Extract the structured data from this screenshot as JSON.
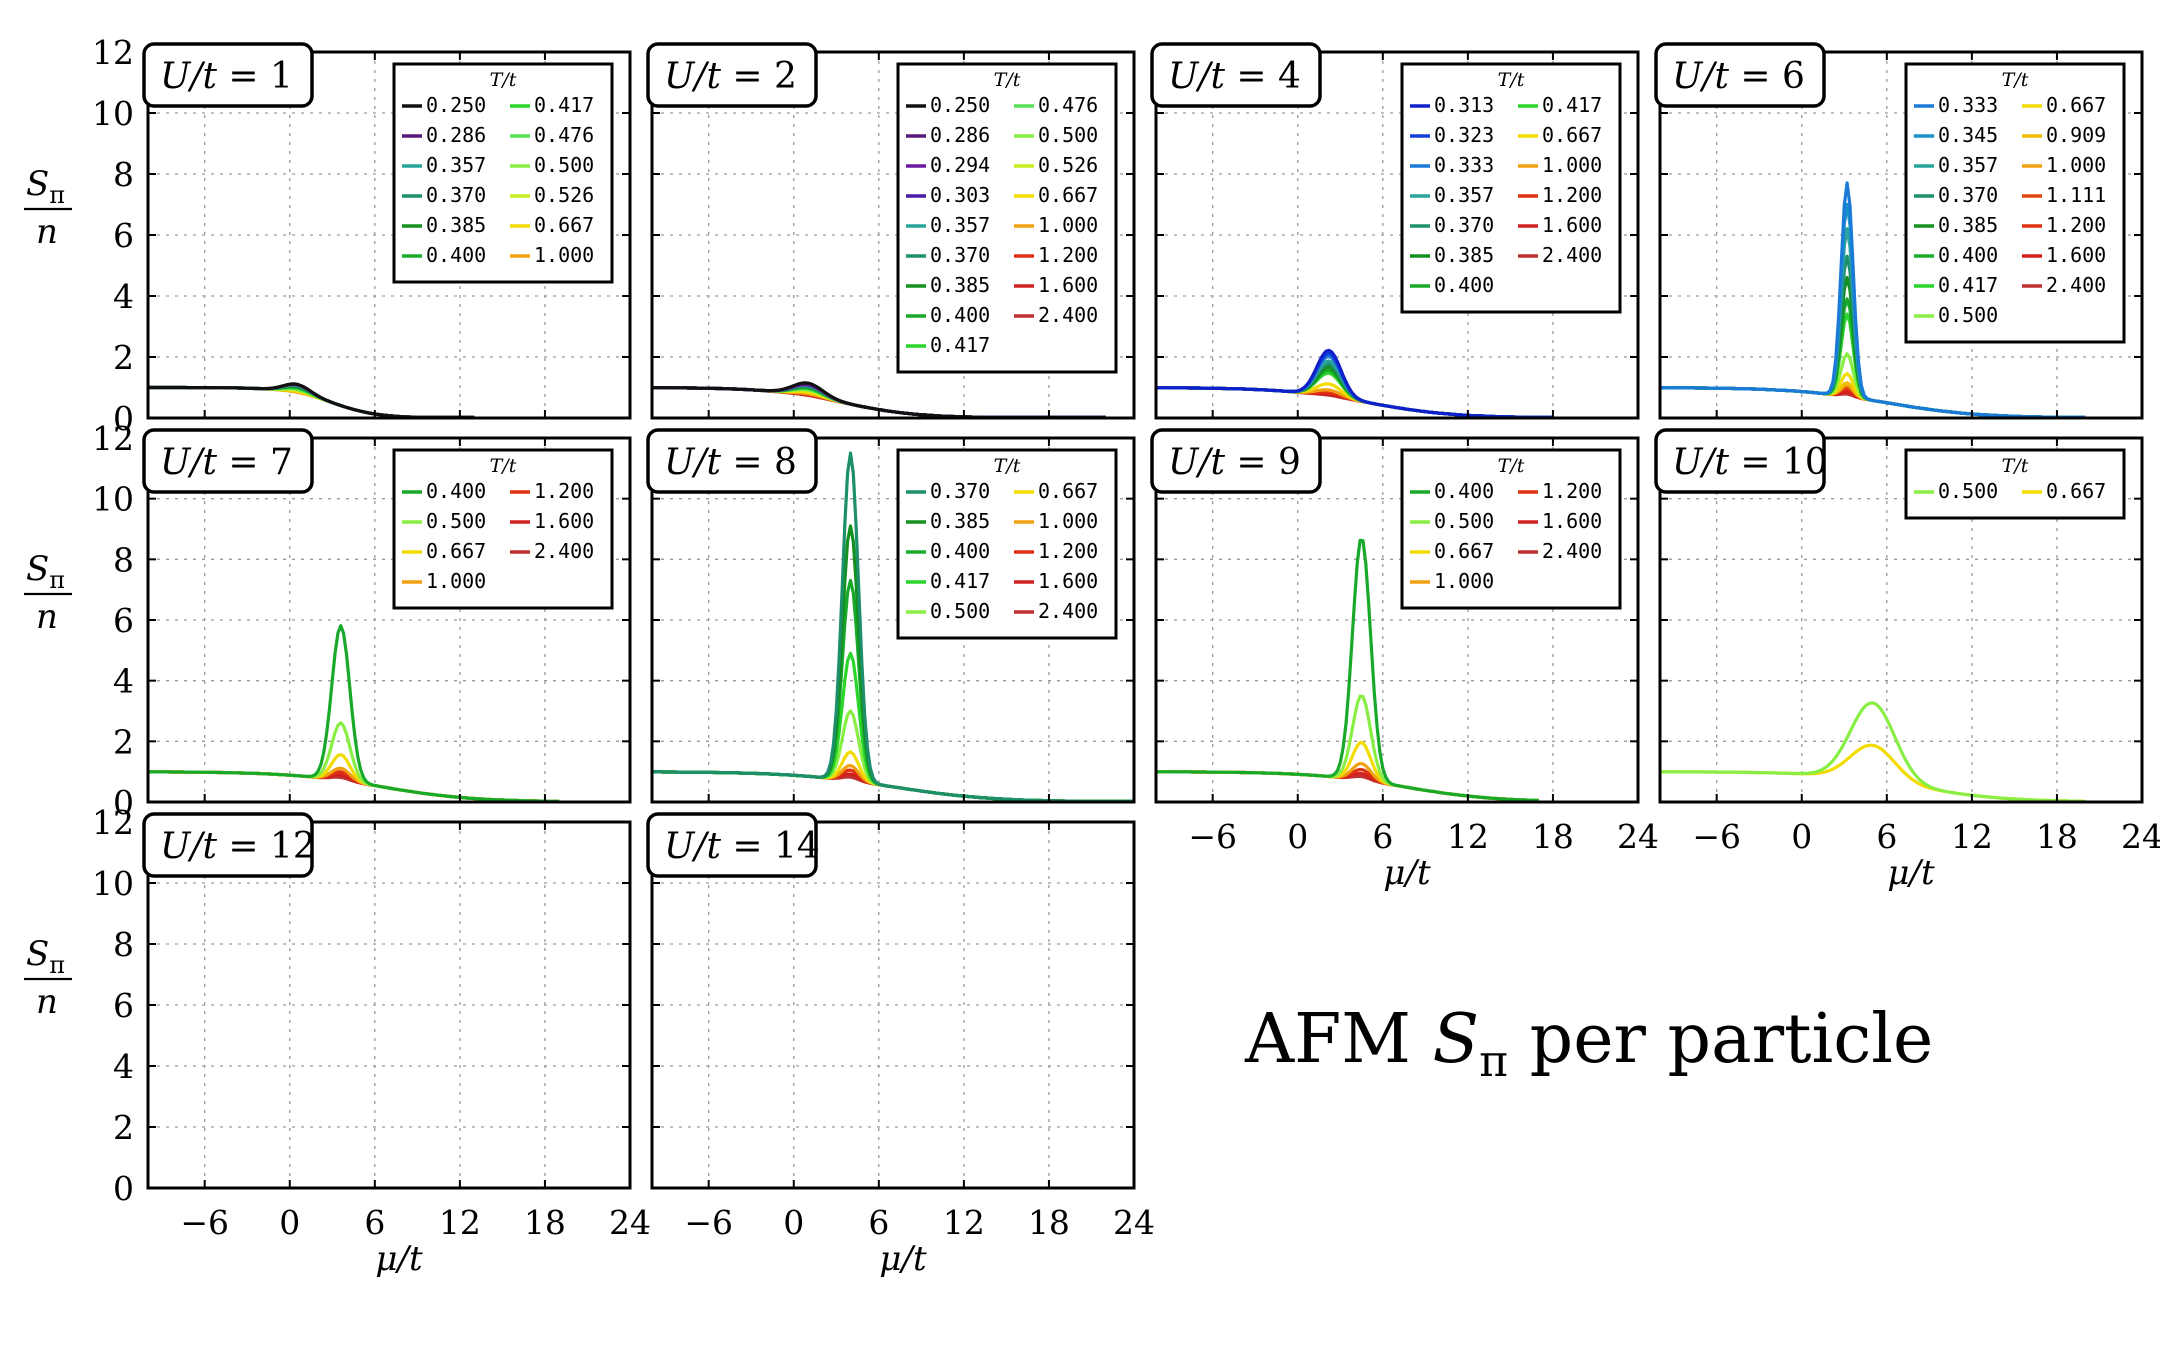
{
  "figure": {
    "title_prefix": "AFM ",
    "title_symbol": "S",
    "title_subscript": "π",
    "title_suffix": " per particle",
    "ylabel_numerator": "S",
    "ylabel_numerator_sub": "π",
    "ylabel_denominator": "n",
    "xlabel": "μ/t",
    "legend_title": "T/t"
  },
  "chart_data": {
    "type": "line",
    "x_axis": {
      "label": "μ/t",
      "range": [
        -10,
        24
      ],
      "ticks": [
        -6,
        0,
        6,
        12,
        18,
        24
      ],
      "tick_labels": [
        "−6",
        "0",
        "6",
        "12",
        "18",
        "24"
      ]
    },
    "y_axis": {
      "label": "S_π / n",
      "range": [
        0,
        12
      ],
      "ticks": [
        0,
        2,
        4,
        6,
        8,
        10,
        12
      ],
      "tick_labels": [
        "0",
        "2",
        "4",
        "6",
        "8",
        "10",
        "12"
      ]
    },
    "grid": true,
    "legend_placement": "top-right",
    "panels": [
      {
        "label": "U/t = 1",
        "temperatures": [
          "0.250",
          "0.286",
          "0.357",
          "0.370",
          "0.385",
          "0.400",
          "0.417",
          "0.476",
          "0.500",
          "0.526",
          "0.667",
          "1.000"
        ],
        "legend_rows_per_col": 6,
        "peak": {
          "mu": 0.5,
          "width": 1.3,
          "heights": [
            0.28,
            0.26,
            0.24,
            0.22,
            0.2,
            0.18,
            0.16,
            0.13,
            0.11,
            0.09,
            0.05,
            0.02
          ]
        },
        "decay": {
          "mu": 3.0,
          "width": 1.6
        },
        "base": 1.0,
        "x_end": 13,
        "colors": [
          "#111111",
          "#5a1a7a",
          "#2aa39a",
          "#1d8f6a",
          "#13901e",
          "#18a82a",
          "#2ad62a",
          "#55e055",
          "#88ee44",
          "#c6ee20",
          "#f2dc00",
          "#f0a010"
        ]
      },
      {
        "label": "U/t = 2",
        "temperatures": [
          "0.250",
          "0.286",
          "0.294",
          "0.303",
          "0.357",
          "0.370",
          "0.385",
          "0.400",
          "0.417",
          "0.476",
          "0.500",
          "0.526",
          "0.667",
          "1.000",
          "1.200",
          "1.600",
          "2.400"
        ],
        "legend_rows_per_col": 9,
        "peak": {
          "mu": 1.0,
          "width": 1.5,
          "heights": [
            0.42,
            0.4,
            0.38,
            0.36,
            0.33,
            0.31,
            0.29,
            0.27,
            0.25,
            0.22,
            0.2,
            0.18,
            0.12,
            0.07,
            0.05,
            0.03,
            0.02
          ]
        },
        "decay": {
          "mu": 3.5,
          "width": 2.6
        },
        "base": 1.0,
        "x_end": 22,
        "colors": [
          "#111111",
          "#5a1a7a",
          "#6a1aa0",
          "#4a1aa8",
          "#2aa39a",
          "#1d8f6a",
          "#13901e",
          "#18a82a",
          "#2ad62a",
          "#55e055",
          "#88ee44",
          "#c6ee20",
          "#f2dc00",
          "#f0a010",
          "#e03010",
          "#d02020",
          "#c03030"
        ]
      },
      {
        "label": "U/t = 4",
        "temperatures": [
          "0.313",
          "0.323",
          "0.333",
          "0.357",
          "0.370",
          "0.385",
          "0.400",
          "0.417",
          "0.667",
          "1.000",
          "1.200",
          "1.600",
          "2.400"
        ],
        "legend_rows_per_col": 7,
        "peak": {
          "mu": 2.2,
          "width": 1.2,
          "heights": [
            1.5,
            1.4,
            1.3,
            1.15,
            1.05,
            0.95,
            0.85,
            0.75,
            0.4,
            0.2,
            0.12,
            0.06,
            0.03
          ]
        },
        "decay": {
          "mu": 5.0,
          "width": 3.0
        },
        "base": 1.0,
        "x_end": 18,
        "colors": [
          "#1020c8",
          "#1040d8",
          "#1a7ad8",
          "#2aa39a",
          "#1d8f6a",
          "#13901e",
          "#18a82a",
          "#2ad62a",
          "#f2dc00",
          "#f0a010",
          "#e03010",
          "#d02020",
          "#c03030"
        ]
      },
      {
        "label": "U/t = 6",
        "temperatures": [
          "0.333",
          "0.345",
          "0.357",
          "0.370",
          "0.385",
          "0.400",
          "0.417",
          "0.500",
          "0.667",
          "0.909",
          "1.000",
          "1.111",
          "1.200",
          "1.600",
          "2.400"
        ],
        "legend_rows_per_col": 8,
        "peak": {
          "mu": 3.2,
          "width": 0.6,
          "heights": [
            7.0,
            6.3,
            5.5,
            4.6,
            3.9,
            3.2,
            2.7,
            1.4,
            0.75,
            0.45,
            0.38,
            0.3,
            0.25,
            0.15,
            0.08
          ]
        },
        "decay": {
          "mu": 6.0,
          "width": 3.2
        },
        "base": 1.0,
        "x_end": 20,
        "colors": [
          "#1a7ad8",
          "#1a90c8",
          "#2aa39a",
          "#1d8f6a",
          "#13901e",
          "#18a82a",
          "#2ad62a",
          "#88ee44",
          "#f2dc00",
          "#f0c000",
          "#f0a010",
          "#e04a10",
          "#e03010",
          "#d02020",
          "#c03030"
        ]
      },
      {
        "label": "U/t = 7",
        "temperatures": [
          "0.400",
          "0.500",
          "0.667",
          "1.000",
          "1.200",
          "1.600",
          "2.400"
        ],
        "legend_rows_per_col": 4,
        "peak": {
          "mu": 3.6,
          "width": 0.9,
          "heights": [
            5.1,
            1.9,
            0.85,
            0.4,
            0.28,
            0.18,
            0.1
          ]
        },
        "decay": {
          "mu": 6.5,
          "width": 3.2
        },
        "base": 1.0,
        "x_end": 19,
        "colors": [
          "#18a82a",
          "#88ee44",
          "#f2dc00",
          "#f0a010",
          "#e03010",
          "#d02020",
          "#c03030"
        ]
      },
      {
        "label": "U/t = 8",
        "temperatures": [
          "0.370",
          "0.385",
          "0.400",
          "0.417",
          "0.500",
          "0.667",
          "1.000",
          "1.200",
          "1.600",
          "2.400"
        ],
        "legend_rows_per_col": 5,
        "peak": {
          "mu": 4.0,
          "width": 0.8,
          "heights": [
            10.8,
            8.4,
            6.6,
            4.2,
            2.3,
            0.95,
            0.5,
            0.35,
            0.22,
            0.12
          ]
        },
        "decay": {
          "mu": 7.0,
          "width": 3.5
        },
        "base": 1.0,
        "x_end": 24,
        "colors": [
          "#1d8f6a",
          "#13901e",
          "#18a82a",
          "#2ad62a",
          "#88ee44",
          "#f2dc00",
          "#f0a010",
          "#e03010",
          "#d02020",
          "#c03030"
        ]
      },
      {
        "label": "U/t = 9",
        "temperatures": [
          "0.400",
          "0.500",
          "0.667",
          "1.000",
          "1.200",
          "1.600",
          "2.400"
        ],
        "legend_rows_per_col": 4,
        "peak": {
          "mu": 4.5,
          "width": 0.9,
          "heights": [
            8.0,
            2.8,
            1.25,
            0.55,
            0.35,
            0.22,
            0.12
          ]
        },
        "decay": {
          "mu": 7.5,
          "width": 3.2
        },
        "base": 1.0,
        "x_end": 17,
        "colors": [
          "#18a82a",
          "#88ee44",
          "#f2dc00",
          "#f0a010",
          "#e03010",
          "#d02020",
          "#c03030"
        ]
      },
      {
        "label": "U/t = 10",
        "temperatures": [
          "0.500",
          "0.667"
        ],
        "legend_rows_per_col": 1,
        "peak": {
          "mu": 5.0,
          "width": 2.2,
          "heights": [
            2.55,
            1.15
          ]
        },
        "decay": {
          "mu": 8.0,
          "width": 3.2
        },
        "base": 1.0,
        "x_end": 20,
        "colors": [
          "#88ee44",
          "#f2dc00"
        ]
      },
      {
        "label": "U/t = 12",
        "temperatures": [],
        "legend_rows_per_col": 0,
        "colors": []
      },
      {
        "label": "U/t = 14",
        "temperatures": [],
        "legend_rows_per_col": 0,
        "colors": []
      }
    ]
  }
}
